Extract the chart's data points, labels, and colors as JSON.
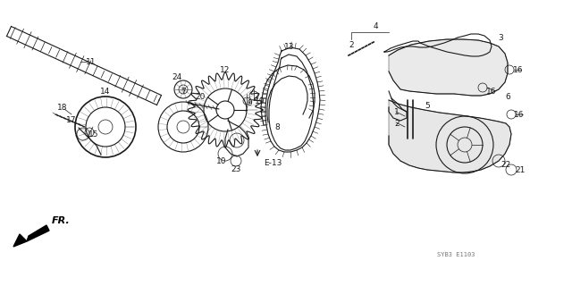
{
  "bg_color": "#ffffff",
  "fig_width": 6.4,
  "fig_height": 3.2,
  "dpi": 100,
  "watermark": "SYB3 E1103",
  "fr_label": "FR.",
  "line_color": "#1a1a1a",
  "label_fontsize": 6.5,
  "label_color": "#111111"
}
